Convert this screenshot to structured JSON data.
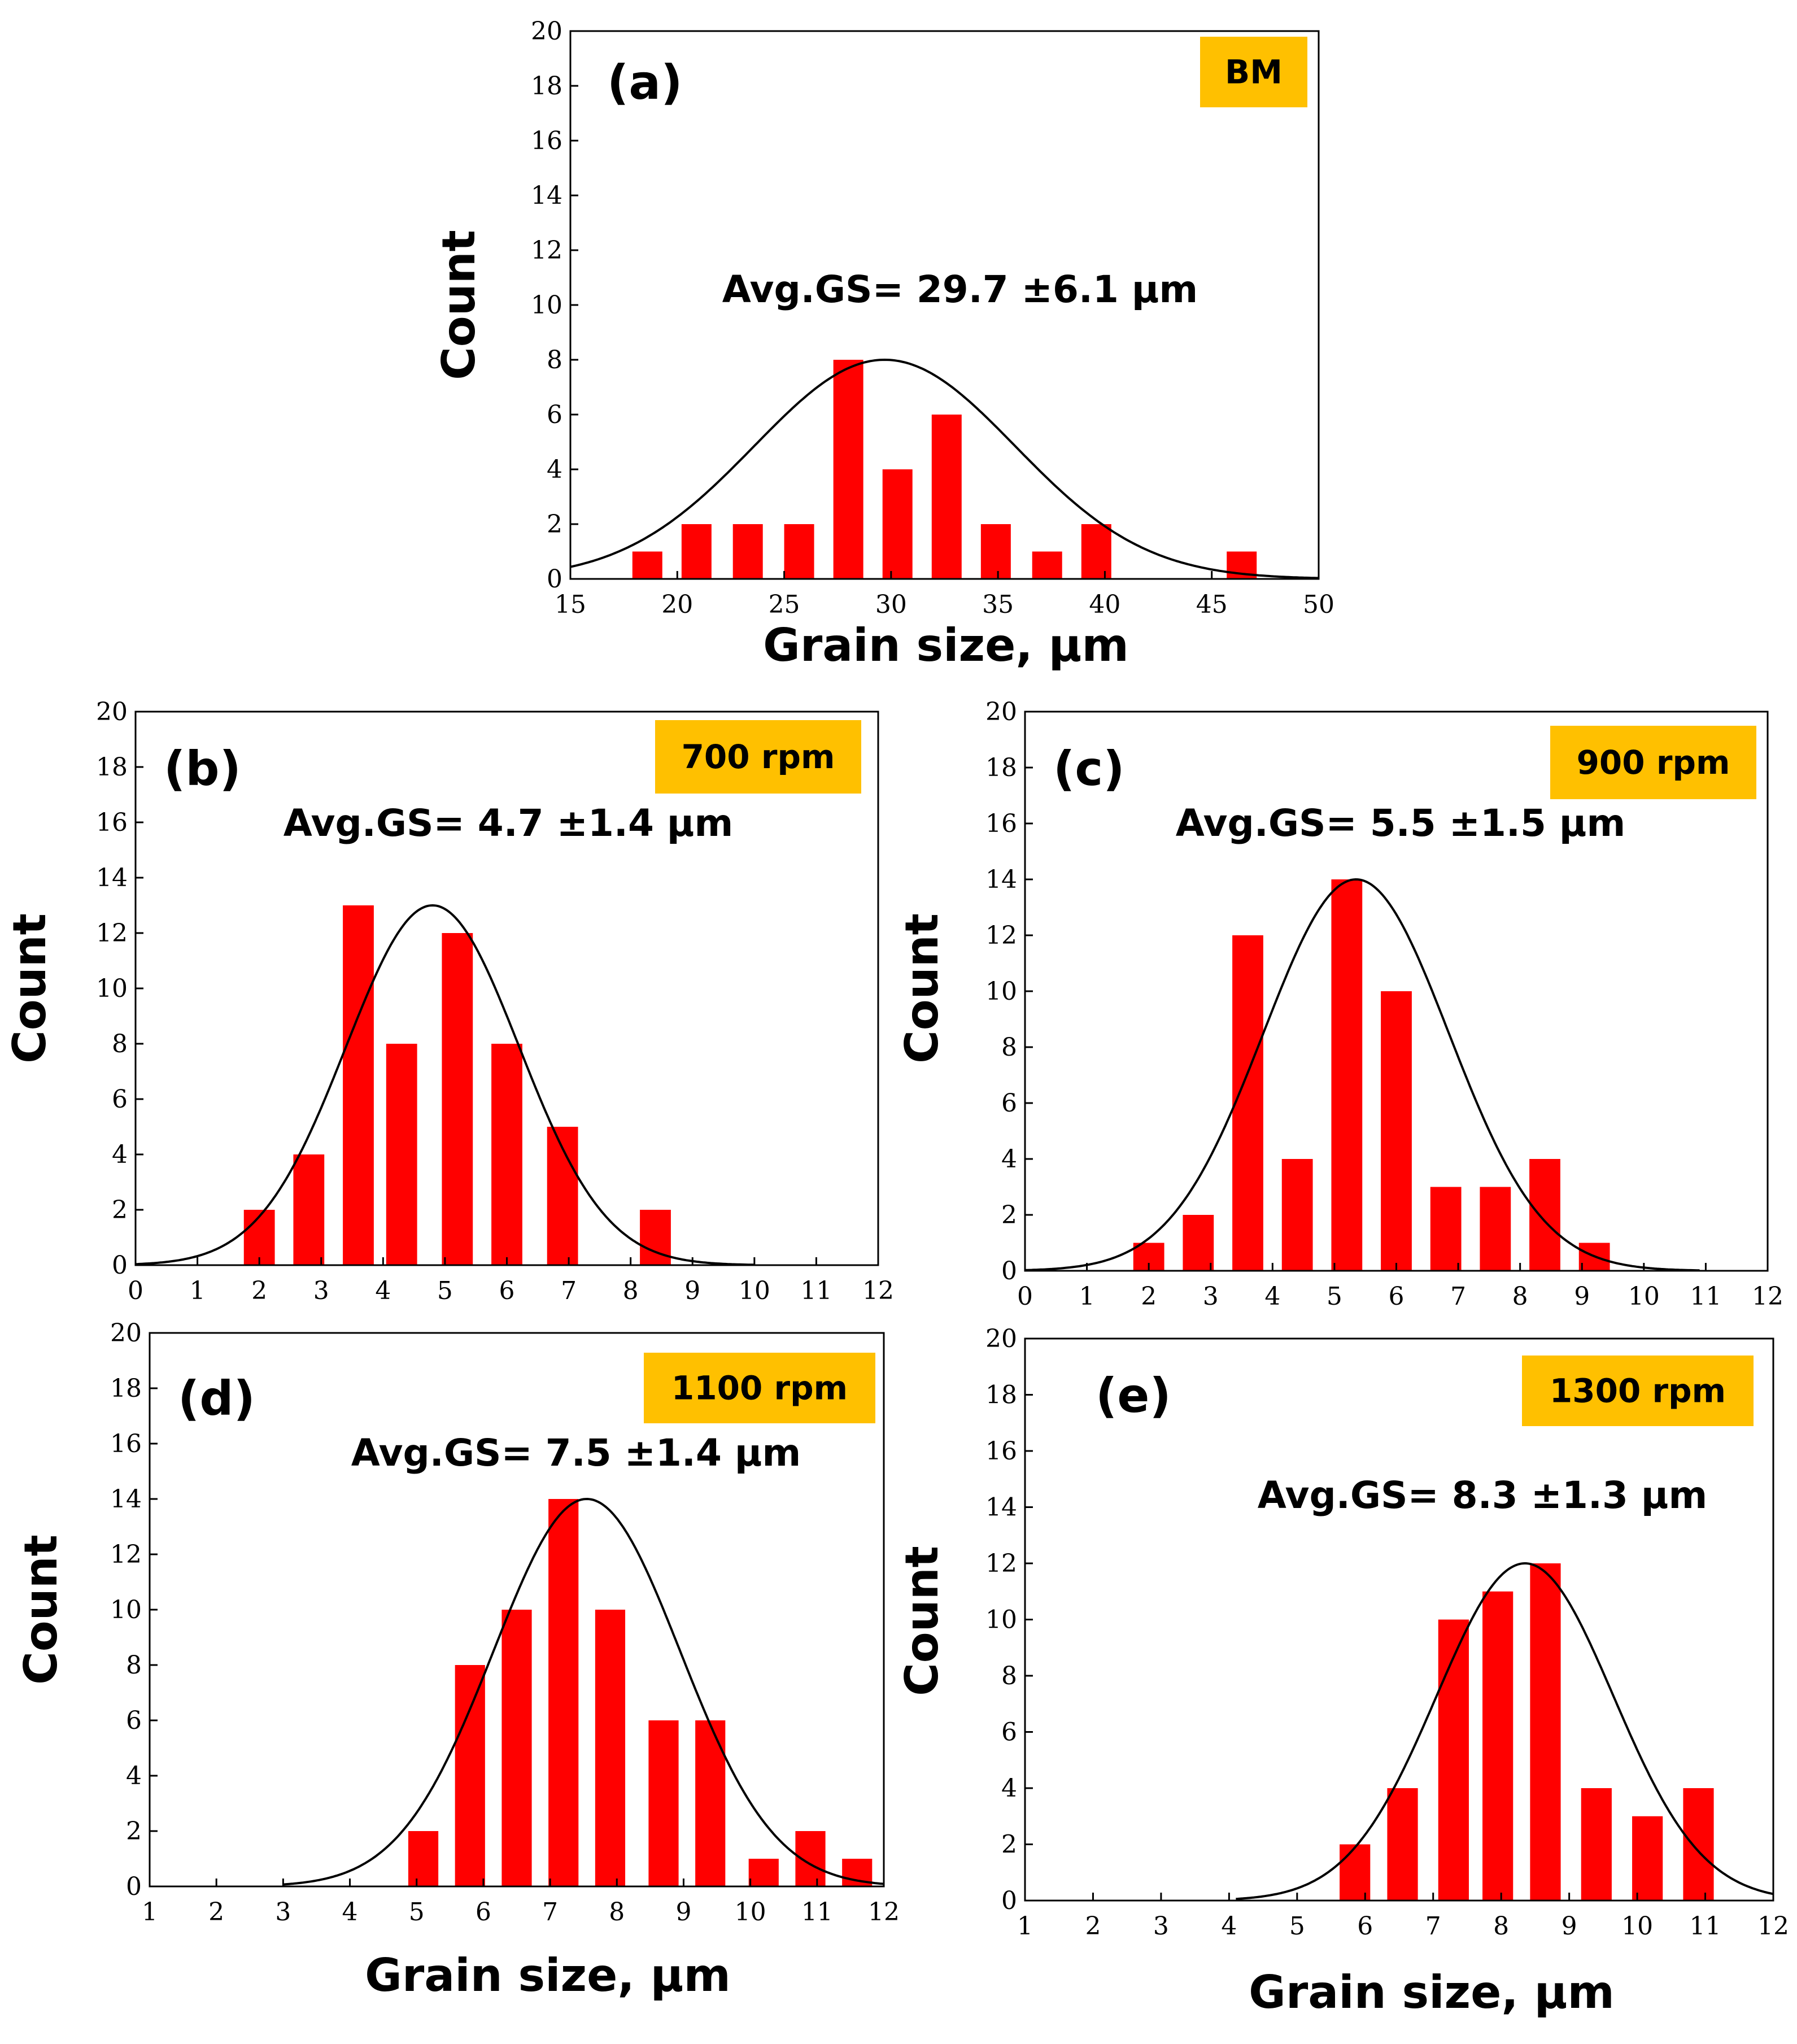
{
  "colors": {
    "bar": "#ff0000",
    "badge": "#ffc000",
    "curve": "#000000",
    "axis": "#000000"
  },
  "chart_data": [
    {
      "type": "bar",
      "panel": "(a)",
      "badge": "BM",
      "avg_label": "Avg.GS= 29.7 ±6.1 µm",
      "xlabel": "Grain size, µm",
      "ylabel": "Count",
      "xlim": [
        15,
        50
      ],
      "ylim": [
        0,
        20
      ],
      "xticks": [
        15,
        20,
        25,
        30,
        35,
        40,
        45,
        50
      ],
      "yticks": [
        0,
        2,
        4,
        6,
        8,
        10,
        12,
        14,
        16,
        18,
        20
      ],
      "bar_width": 1.4,
      "bars": [
        {
          "x": 18.6,
          "value": 1
        },
        {
          "x": 20.9,
          "value": 2
        },
        {
          "x": 23.3,
          "value": 2
        },
        {
          "x": 25.7,
          "value": 2
        },
        {
          "x": 28.0,
          "value": 8
        },
        {
          "x": 30.3,
          "value": 4
        },
        {
          "x": 32.6,
          "value": 6
        },
        {
          "x": 34.9,
          "value": 2
        },
        {
          "x": 37.3,
          "value": 1
        },
        {
          "x": 39.6,
          "value": 2
        },
        {
          "x": 46.4,
          "value": 1
        }
      ],
      "fit": {
        "mean": 29.7,
        "sd": 6.1,
        "peak": 8,
        "range": [
          15,
          50
        ]
      }
    },
    {
      "type": "bar",
      "panel": "(b)",
      "badge": "700 rpm",
      "avg_label": "Avg.GS= 4.7 ±1.4 µm",
      "xlabel": "",
      "ylabel": "Count",
      "xlim": [
        0,
        12
      ],
      "ylim": [
        0,
        20
      ],
      "xticks": [
        0,
        1,
        2,
        3,
        4,
        5,
        6,
        7,
        8,
        9,
        10,
        11,
        12
      ],
      "yticks": [
        0,
        2,
        4,
        6,
        8,
        10,
        12,
        14,
        16,
        18,
        20
      ],
      "bar_width": 0.5,
      "bars": [
        {
          "x": 2.0,
          "value": 2
        },
        {
          "x": 2.8,
          "value": 4
        },
        {
          "x": 3.6,
          "value": 13
        },
        {
          "x": 4.3,
          "value": 8
        },
        {
          "x": 5.2,
          "value": 12
        },
        {
          "x": 6.0,
          "value": 8
        },
        {
          "x": 6.9,
          "value": 5
        },
        {
          "x": 8.4,
          "value": 2
        }
      ],
      "fit": {
        "mean": 4.8,
        "sd": 1.4,
        "peak": 13,
        "range": [
          0,
          10
        ]
      }
    },
    {
      "type": "bar",
      "panel": "(c)",
      "badge": "900 rpm",
      "avg_label": "Avg.GS= 5.5 ±1.5 µm",
      "xlabel": "",
      "ylabel": "Count",
      "xlim": [
        0,
        12
      ],
      "ylim": [
        0,
        20
      ],
      "xticks": [
        0,
        1,
        2,
        3,
        4,
        5,
        6,
        7,
        8,
        9,
        10,
        11,
        12
      ],
      "yticks": [
        0,
        2,
        4,
        6,
        8,
        10,
        12,
        14,
        16,
        18,
        20
      ],
      "bar_width": 0.5,
      "bars": [
        {
          "x": 2.0,
          "value": 1
        },
        {
          "x": 2.8,
          "value": 2
        },
        {
          "x": 3.6,
          "value": 12
        },
        {
          "x": 4.4,
          "value": 4
        },
        {
          "x": 5.2,
          "value": 14
        },
        {
          "x": 6.0,
          "value": 10
        },
        {
          "x": 6.8,
          "value": 3
        },
        {
          "x": 7.6,
          "value": 3
        },
        {
          "x": 8.4,
          "value": 4
        },
        {
          "x": 9.2,
          "value": 1
        }
      ],
      "fit": {
        "mean": 5.35,
        "sd": 1.5,
        "peak": 14,
        "range": [
          0,
          10.9
        ]
      }
    },
    {
      "type": "bar",
      "panel": "(d)",
      "badge": "1100 rpm",
      "avg_label": "Avg.GS= 7.5 ±1.4 µm",
      "xlabel": "Grain size, µm",
      "ylabel": "Count",
      "xlim": [
        1,
        12
      ],
      "ylim": [
        0,
        20
      ],
      "xticks": [
        1,
        2,
        3,
        4,
        5,
        6,
        7,
        8,
        9,
        10,
        11,
        12
      ],
      "yticks": [
        0,
        2,
        4,
        6,
        8,
        10,
        12,
        14,
        16,
        18,
        20
      ],
      "bar_width": 0.45,
      "bars": [
        {
          "x": 5.1,
          "value": 2
        },
        {
          "x": 5.8,
          "value": 8
        },
        {
          "x": 6.5,
          "value": 10
        },
        {
          "x": 7.2,
          "value": 14
        },
        {
          "x": 7.9,
          "value": 10
        },
        {
          "x": 8.7,
          "value": 6
        },
        {
          "x": 9.4,
          "value": 6
        },
        {
          "x": 10.2,
          "value": 1
        },
        {
          "x": 10.9,
          "value": 2
        },
        {
          "x": 11.6,
          "value": 1
        }
      ],
      "fit": {
        "mean": 7.55,
        "sd": 1.4,
        "peak": 14,
        "range": [
          3,
          12
        ]
      }
    },
    {
      "type": "bar",
      "panel": "(e)",
      "badge": "1300 rpm",
      "avg_label": "Avg.GS= 8.3 ±1.3 µm",
      "xlabel": "Grain size, µm",
      "ylabel": "Count",
      "xlim": [
        1,
        12
      ],
      "ylim": [
        0,
        20
      ],
      "xticks": [
        1,
        2,
        3,
        4,
        5,
        6,
        7,
        8,
        9,
        10,
        11,
        12
      ],
      "yticks": [
        0,
        2,
        4,
        6,
        8,
        10,
        12,
        14,
        16,
        18,
        20
      ],
      "bar_width": 0.45,
      "bars": [
        {
          "x": 5.85,
          "value": 2
        },
        {
          "x": 6.55,
          "value": 4
        },
        {
          "x": 7.3,
          "value": 10
        },
        {
          "x": 7.95,
          "value": 11
        },
        {
          "x": 8.65,
          "value": 12
        },
        {
          "x": 9.4,
          "value": 4
        },
        {
          "x": 10.15,
          "value": 3
        },
        {
          "x": 10.9,
          "value": 4
        }
      ],
      "fit": {
        "mean": 8.35,
        "sd": 1.3,
        "peak": 12,
        "range": [
          4.1,
          12
        ]
      }
    }
  ]
}
